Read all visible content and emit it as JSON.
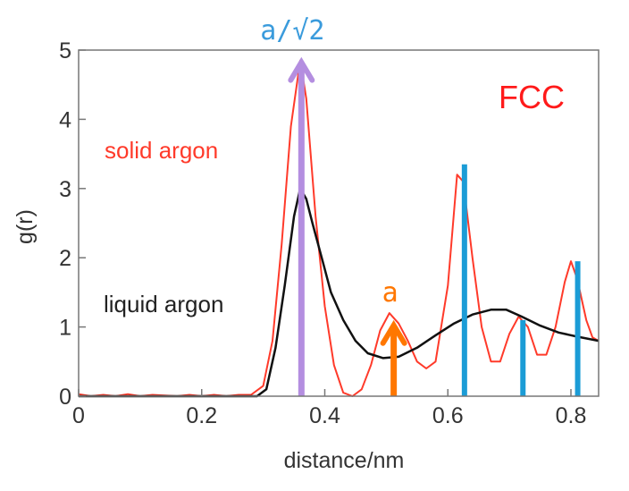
{
  "chart_data": {
    "type": "line",
    "xlabel": "distance/nm",
    "ylabel": "g(r)",
    "xlim": [
      0,
      0.845
    ],
    "ylim": [
      0,
      5
    ],
    "x_ticks": [
      0,
      0.2,
      0.4,
      0.6,
      0.8
    ],
    "x_tick_labels": [
      "0",
      "0.2",
      "0.4",
      "0.6",
      "0.8"
    ],
    "y_ticks": [
      0,
      1,
      2,
      3,
      4,
      5
    ],
    "y_tick_labels": [
      "0",
      "1",
      "2",
      "3",
      "4",
      "5"
    ],
    "grid": false,
    "series": [
      {
        "name": "solid argon",
        "color": "#ff3a2a",
        "points": [
          [
            0.0,
            0.03
          ],
          [
            0.02,
            0.0
          ],
          [
            0.04,
            0.02
          ],
          [
            0.06,
            0.0
          ],
          [
            0.08,
            0.03
          ],
          [
            0.1,
            0.0
          ],
          [
            0.12,
            0.02
          ],
          [
            0.14,
            0.01
          ],
          [
            0.16,
            0.0
          ],
          [
            0.18,
            0.02
          ],
          [
            0.2,
            0.0
          ],
          [
            0.22,
            0.02
          ],
          [
            0.24,
            0.0
          ],
          [
            0.26,
            0.02
          ],
          [
            0.28,
            0.02
          ],
          [
            0.3,
            0.15
          ],
          [
            0.315,
            0.8
          ],
          [
            0.33,
            2.2
          ],
          [
            0.345,
            3.9
          ],
          [
            0.36,
            4.85
          ],
          [
            0.37,
            4.3
          ],
          [
            0.385,
            2.6
          ],
          [
            0.4,
            1.3
          ],
          [
            0.415,
            0.45
          ],
          [
            0.43,
            0.05
          ],
          [
            0.445,
            0.0
          ],
          [
            0.46,
            0.1
          ],
          [
            0.475,
            0.45
          ],
          [
            0.49,
            0.95
          ],
          [
            0.505,
            1.2
          ],
          [
            0.52,
            1.05
          ],
          [
            0.535,
            0.8
          ],
          [
            0.55,
            0.5
          ],
          [
            0.565,
            0.4
          ],
          [
            0.58,
            0.5
          ],
          [
            0.6,
            1.6
          ],
          [
            0.615,
            3.2
          ],
          [
            0.625,
            3.1
          ],
          [
            0.64,
            2.0
          ],
          [
            0.655,
            1.0
          ],
          [
            0.67,
            0.5
          ],
          [
            0.685,
            0.5
          ],
          [
            0.7,
            0.9
          ],
          [
            0.715,
            1.15
          ],
          [
            0.73,
            1.0
          ],
          [
            0.745,
            0.6
          ],
          [
            0.76,
            0.6
          ],
          [
            0.775,
            1.0
          ],
          [
            0.79,
            1.65
          ],
          [
            0.8,
            1.95
          ],
          [
            0.81,
            1.7
          ],
          [
            0.825,
            1.1
          ],
          [
            0.835,
            0.85
          ],
          [
            0.845,
            0.8
          ]
        ]
      },
      {
        "name": "liquid argon",
        "color": "#111111",
        "points": [
          [
            0.0,
            0.0
          ],
          [
            0.1,
            0.0
          ],
          [
            0.2,
            0.0
          ],
          [
            0.29,
            0.0
          ],
          [
            0.305,
            0.1
          ],
          [
            0.32,
            0.7
          ],
          [
            0.335,
            1.6
          ],
          [
            0.35,
            2.6
          ],
          [
            0.36,
            3.0
          ],
          [
            0.37,
            2.85
          ],
          [
            0.38,
            2.5
          ],
          [
            0.395,
            2.0
          ],
          [
            0.41,
            1.5
          ],
          [
            0.43,
            1.1
          ],
          [
            0.45,
            0.8
          ],
          [
            0.47,
            0.62
          ],
          [
            0.495,
            0.55
          ],
          [
            0.52,
            0.57
          ],
          [
            0.55,
            0.7
          ],
          [
            0.58,
            0.88
          ],
          [
            0.61,
            1.05
          ],
          [
            0.64,
            1.18
          ],
          [
            0.67,
            1.25
          ],
          [
            0.695,
            1.25
          ],
          [
            0.72,
            1.15
          ],
          [
            0.75,
            1.02
          ],
          [
            0.78,
            0.92
          ],
          [
            0.81,
            0.86
          ],
          [
            0.845,
            0.8
          ]
        ]
      }
    ],
    "markers": [
      {
        "type": "arrow",
        "x": 0.362,
        "y_from": 0,
        "y_to": 4.85,
        "color": "#b48ee0"
      },
      {
        "type": "arrow",
        "x": 0.512,
        "y_from": 0,
        "y_to": 1.05,
        "color": "#ff7700"
      },
      {
        "type": "bar",
        "x": 0.627,
        "height": 3.35,
        "color": "#1b9cd6"
      },
      {
        "type": "bar",
        "x": 0.722,
        "height": 1.1,
        "color": "#1b9cd6"
      },
      {
        "type": "bar",
        "x": 0.811,
        "height": 1.95,
        "color": "#1b9cd6"
      }
    ],
    "annotations": {
      "a_sqrt2": {
        "text": "a/√2",
        "color": "#3a9bdc"
      },
      "a": {
        "text": "a",
        "color": "#ff7700"
      },
      "fcc": {
        "text": "FCC",
        "color": "#ff1a1a"
      },
      "solid": {
        "text": "solid argon",
        "color": "#ff3a2a"
      },
      "liquid": {
        "text": "liquid argon",
        "color": "#222222"
      }
    }
  }
}
